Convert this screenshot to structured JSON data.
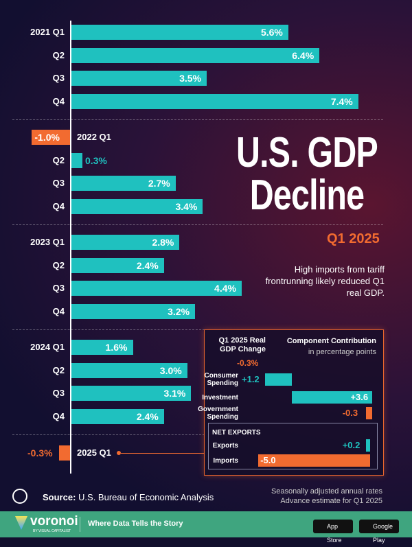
{
  "chart_data": {
    "type": "bar",
    "orientation": "horizontal",
    "title": "U.S. GDP Decline",
    "title_accent": "Q1 2025",
    "subtitle": "High imports from tariff frontrunning likely reduced Q1 real GDP.",
    "categories": [
      "2021 Q1",
      "Q2",
      "Q3",
      "Q4",
      "2022 Q1",
      "Q2",
      "Q3",
      "Q4",
      "2023 Q1",
      "Q2",
      "Q3",
      "Q4",
      "2024 Q1",
      "Q2",
      "Q3",
      "Q4",
      "2025 Q1"
    ],
    "values": [
      5.6,
      6.4,
      3.5,
      7.4,
      -1.0,
      0.3,
      2.7,
      3.4,
      2.8,
      2.4,
      4.4,
      3.2,
      1.6,
      3.0,
      3.1,
      2.4,
      -0.3
    ],
    "unit": "%",
    "colors": {
      "positive": "#1fc1bf",
      "negative": "#f26b30"
    },
    "inset": {
      "title": "Q1 2025 Real GDP Change",
      "total": "-0.3%",
      "header": "Component Contribution",
      "header_sub": "in percentage points",
      "group_label": "NET EXPORTS",
      "components": [
        {
          "name": "Consumer Spending",
          "value": 1.2,
          "label": "+1.2"
        },
        {
          "name": "Investment",
          "value": 3.6,
          "label": "+3.6"
        },
        {
          "name": "Government Spending",
          "value": -0.3,
          "label": "-0.3"
        },
        {
          "name": "Exports",
          "value": 0.2,
          "label": "+0.2"
        },
        {
          "name": "Imports",
          "value": -5.0,
          "label": "-5.0"
        }
      ]
    }
  },
  "footer": {
    "source_label": "Source:",
    "source": "U.S. Bureau of Economic Analysis",
    "note1": "Seasonally adjusted annual rates",
    "note2": "Advance estimate for Q1 2025",
    "brand": "voronoi",
    "brand_sub": "BY VISUAL CAPITALIST",
    "tagline": "Where Data Tells the Story",
    "app_store": "App Store",
    "google_play": "Google Play"
  }
}
